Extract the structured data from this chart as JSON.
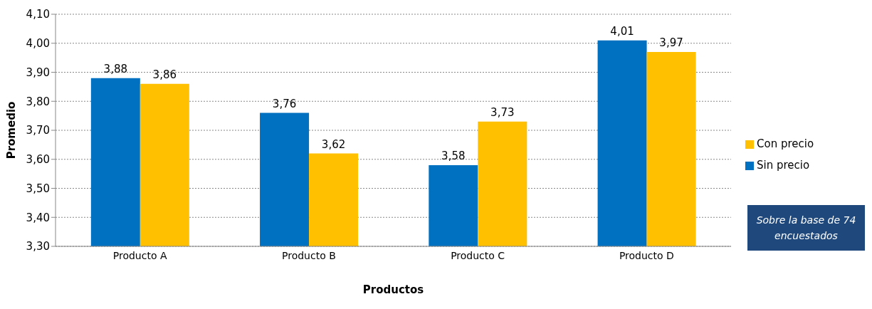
{
  "chart_data": {
    "type": "bar",
    "xlabel": "Productos",
    "ylabel": "Promedio",
    "categories": [
      "Producto A",
      "Producto B",
      "Producto C",
      "Producto D"
    ],
    "series": [
      {
        "name": "Sin precio",
        "color": "#0070c0",
        "values": [
          3.88,
          3.76,
          3.58,
          4.01
        ],
        "value_labels": [
          "3,88",
          "3,76",
          "3,58",
          "4,01"
        ]
      },
      {
        "name": "Con precio",
        "color": "#ffc000",
        "values": [
          3.86,
          3.62,
          3.73,
          3.97
        ],
        "value_labels": [
          "3,86",
          "3,62",
          "3,73",
          "3,97"
        ]
      }
    ],
    "ylim": [
      3.3,
      4.1
    ],
    "yticks": [
      {
        "value": 3.3,
        "label": "3,30"
      },
      {
        "value": 3.4,
        "label": "3,40"
      },
      {
        "value": 3.5,
        "label": "3,50"
      },
      {
        "value": 3.6,
        "label": "3,60"
      },
      {
        "value": 3.7,
        "label": "3,70"
      },
      {
        "value": 3.8,
        "label": "3,80"
      },
      {
        "value": 3.9,
        "label": "3,90"
      },
      {
        "value": 4.0,
        "label": "4,00"
      },
      {
        "value": 4.1,
        "label": "4,10"
      }
    ],
    "grid": "y",
    "legend": "right",
    "annotations": [
      "Sobre la base de 74 encuestados"
    ]
  }
}
